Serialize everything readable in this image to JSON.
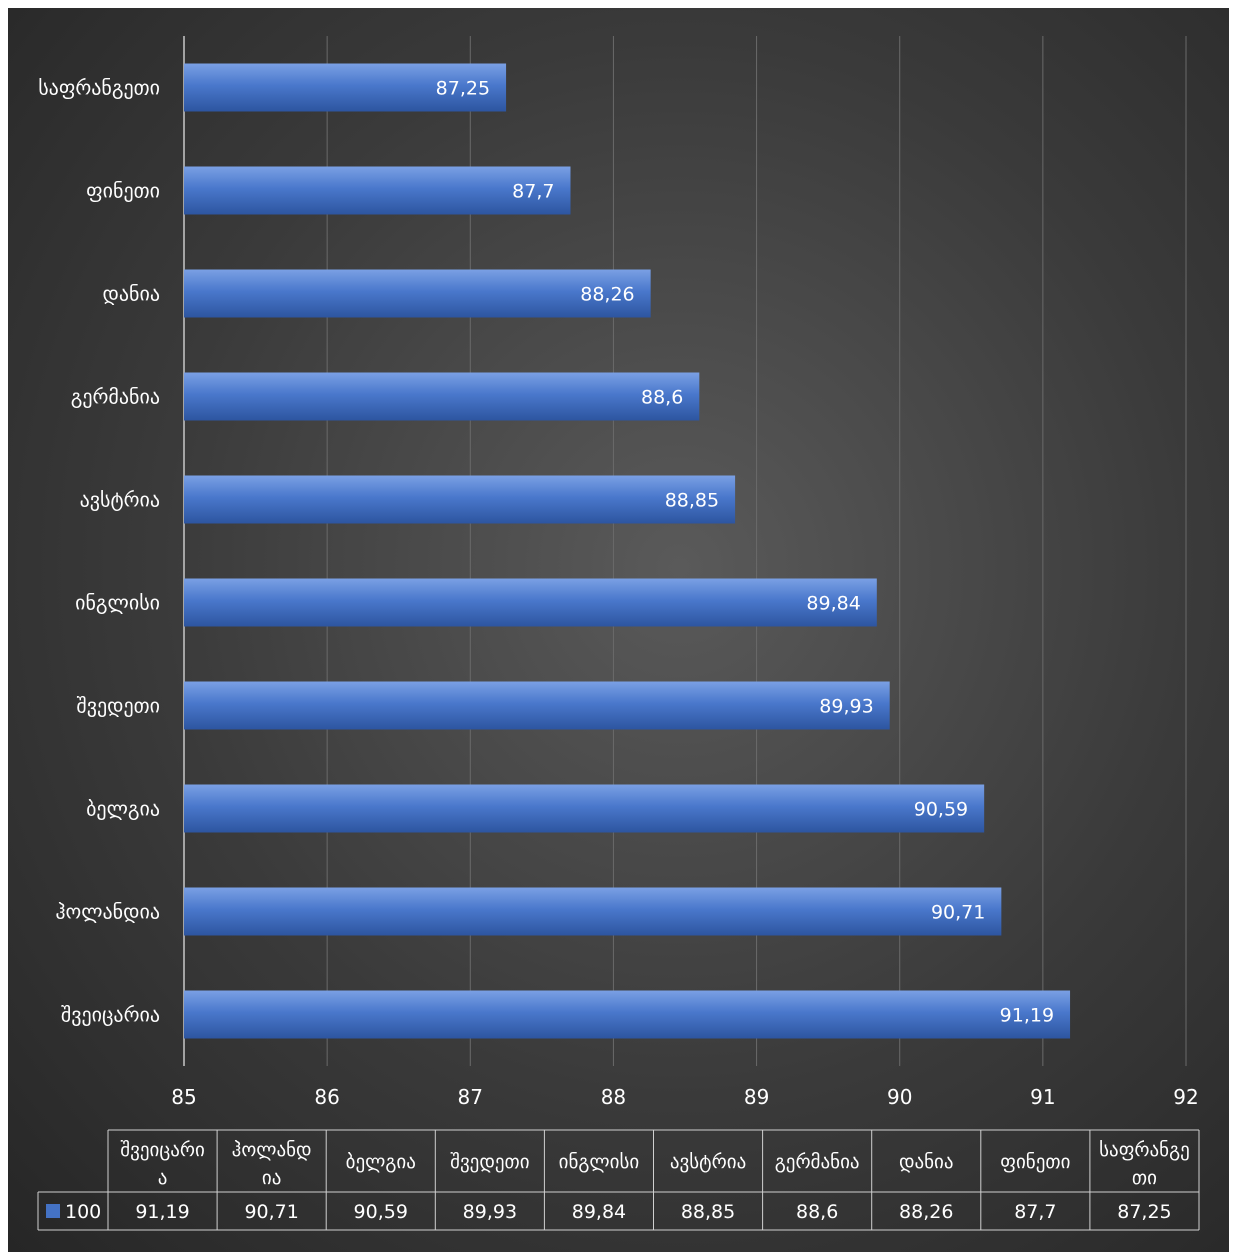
{
  "chart_data": {
    "type": "bar",
    "orientation": "horizontal",
    "categories": [
      "საფრანგეთი",
      "ფინეთი",
      "დანია",
      "გერმანია",
      "ავსტრია",
      "ინგლისი",
      "შვედეთი",
      "ბელგია",
      "ჰოლანდია",
      "შვეიცარია"
    ],
    "series": [
      {
        "name": "100",
        "values": [
          87.25,
          87.7,
          88.26,
          88.6,
          88.85,
          89.84,
          89.93,
          90.59,
          90.71,
          91.19
        ]
      }
    ],
    "value_labels": [
      "87,25",
      "87,7",
      "88,26",
      "88,6",
      "88,85",
      "89,84",
      "89,93",
      "90,59",
      "90,71",
      "91,19"
    ],
    "xlim": [
      85,
      92
    ],
    "x_ticks": [
      "85",
      "86",
      "87",
      "88",
      "89",
      "90",
      "91",
      "92"
    ],
    "grid": true,
    "colors": {
      "bar": "#4472c4",
      "bar_light": "#6b93dc",
      "bar_dark": "#2e56a3",
      "background": "#404040",
      "grid": "#6a6a6a"
    },
    "data_table": {
      "legend_key": "100",
      "headers": [
        [
          "შვეიცარი",
          "ა"
        ],
        [
          "ჰოლანდ",
          "ია"
        ],
        [
          "ბელგია"
        ],
        [
          "შვედეთი"
        ],
        [
          "ინგლისი"
        ],
        [
          "ავსტრია"
        ],
        [
          "გერმანია"
        ],
        [
          "დანია"
        ],
        [
          "ფინეთი"
        ],
        [
          "საფრანგე",
          "თი"
        ]
      ],
      "values": [
        "91,19",
        "90,71",
        "90,59",
        "89,93",
        "89,84",
        "88,85",
        "88,6",
        "88,26",
        "87,7",
        "87,25"
      ]
    }
  }
}
